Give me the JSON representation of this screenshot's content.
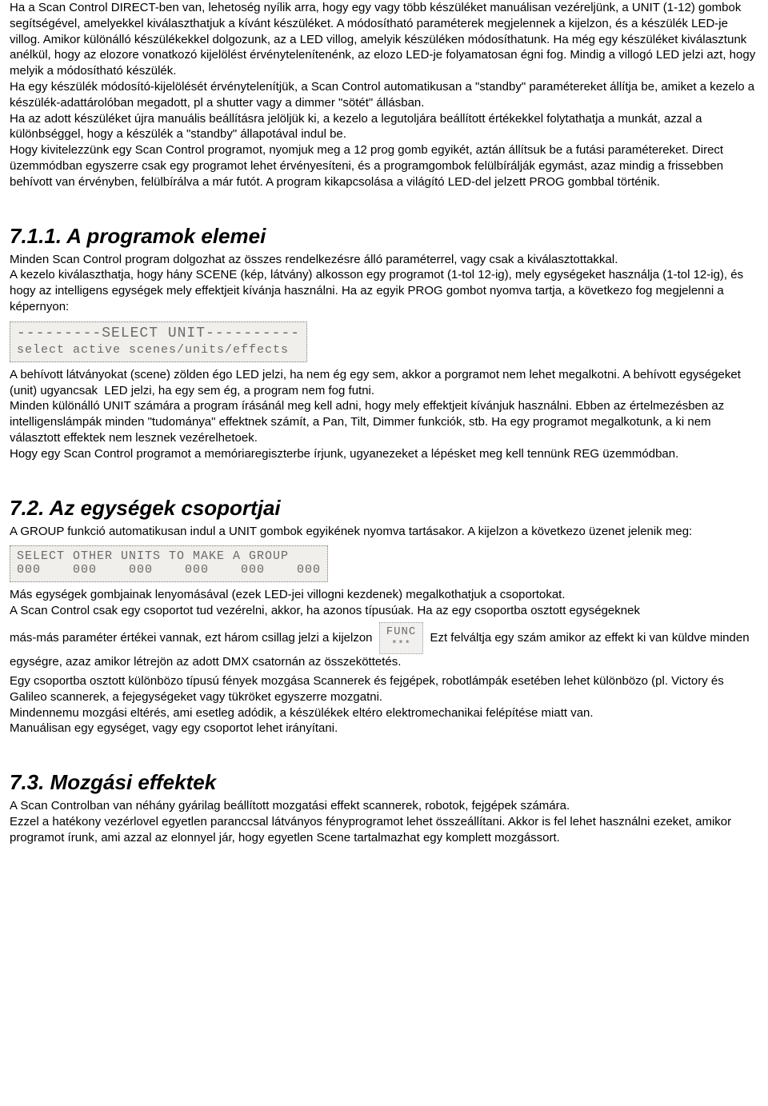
{
  "intro": {
    "p1": "Ha a Scan Control DIRECT-ben van, lehetoség nyílik arra, hogy egy vagy több készüléket manuálisan vezéreljünk, a UNIT (1-12) gombok  segítségével, amelyekkel kiválaszthatjuk a kívánt készüléket. A módosítható paraméterek megjelennek a kijelzon, és a készülék LED-je villog. Amikor különálló készülékekkel dolgozunk, az a LED villog, amelyik készüléken módosíthatunk. Ha még egy készüléket kiválasztunk anélkül, hogy az elozore vonatkozó kijelölést érvénytelenítenénk, az elozo LED-je folyamatosan égni fog. Mindig a villogó LED jelzi azt, hogy melyik a módosítható készülék.\nHa egy készülék módosító-kijelölését érvénytelenítjük, a Scan Control automatikusan a \"standby\" paramétereket állítja be, amiket a kezelo a készülék-adattárolóban megadott, pl a shutter vagy a dimmer \"sötét\" állásban.\nHa az adott készüléket újra manuális beállításra jelöljük ki, a kezelo a legutoljára beállított értékekkel folytathatja a munkát, azzal a különbséggel, hogy a készülék a \"standby\" állapotával indul be.\nHogy kivitelezzünk egy Scan Control programot, nyomjuk meg a 12 prog gomb egyikét, aztán állítsuk be a futási paramétereket. Direct üzemmódban egyszerre csak egy programot lehet érvényesíteni, és a programgombok felülbírálják egymást, azaz mindig a frissebben behívott van érvényben, felülbírálva a már futót. A program kikapcsolása a világító LED-del jelzett PROG gombbal történik."
  },
  "sec711": {
    "heading": "7.1.1. A programok elemei",
    "p1": "Minden Scan Control program dolgozhat az összes rendelkezésre álló paraméterrel, vagy csak a kiválasztottakkal.\nA kezelo kiválaszthatja, hogy hány SCENE (kép, látvány) alkosson egy programot (1-tol 12-ig), mely egységeket használja (1-tol 12-ig), és hogy az intelligens egységek mely effektjeit kívánja használni. Ha az egyik PROG gombot nyomva tartja, a következo fog megjelenni a képernyon:",
    "lcd1_line1": "---------SELECT UNIT----------",
    "lcd1_line2": "select active scenes/units/effects",
    "p2": "A behívott látványokat (scene) zölden égo LED jelzi, ha nem ég egy sem, akkor a porgramot nem lehet megalkotni. A behívott egységeket (unit) ugyancsak  LED jelzi, ha egy sem ég, a program nem fog futni.\nMinden különálló UNIT számára a program írásánál meg kell adni, hogy mely effektjeit kívánjuk használni. Ebben az értelmezésben az intelligenslámpák minden \"tudománya\" effektnek számít, a Pan, Tilt, Dimmer funkciók, stb. Ha egy programot megalkotunk, a ki nem választott effektek nem lesznek vezérelhetoek.\nHogy egy Scan Control programot a memóriaregiszterbe írjunk, ugyanezeket a lépésket meg kell tennünk REG üzemmódban."
  },
  "sec72": {
    "heading": "7.2. Az egységek csoportjai",
    "p1": "A GROUP funkció automatikusan indul a UNIT gombok egyikének nyomva tartásakor. A kijelzon a következo üzenet jelenik meg:",
    "lcd2_line1": "SELECT OTHER UNITS TO MAKE A GROUP",
    "lcd2_line2": "000    000    000    000    000    000",
    "p2": "Más egységek gombjainak lenyomásával (ezek LED-jei villogni kezdenek) megalkothatjuk a csoportokat.\nA Scan Control csak egy csoportot tud vezérelni, akkor, ha azonos típusúak. Ha az egy csoportba osztott egységeknek",
    "p3a": "más-más paraméter értékei vannak, ezt három csillag jelzi a kijelzon ",
    "func_l1": "FUNC",
    "func_l2": "***",
    "p3b": " Ezt felváltja egy szám amikor az effekt ki van küldve minden egységre, azaz amikor létrejön az adott DMX csatornán az összeköttetés.",
    "p4": "Egy csoportba osztott különbözo típusú fények mozgása Scannerek és fejgépek, robotlámpák esetében lehet különbözo (pl. Victory és Galileo scannerek, a fejegységeket vagy tükröket egyszerre mozgatni.\nMindennemu mozgási eltérés, ami esetleg adódik, a készülékek eltéro elektromechanikai felépítése miatt van.\nManuálisan egy egységet, vagy egy csoportot lehet irányítani."
  },
  "sec73": {
    "heading": "7.3. Mozgási effektek",
    "p1": "A Scan Controlban van néhány gyárilag beállított mozgatási effekt scannerek, robotok, fejgépek számára.\nEzzel a hatékony vezérlovel egyetlen paranccsal látványos fényprogramot lehet összeállítani. Akkor is fel lehet használni ezeket, amikor programot írunk, ami azzal az elonnyel jár, hogy egyetlen Scene tartalmazhat egy komplett mozgássort."
  }
}
